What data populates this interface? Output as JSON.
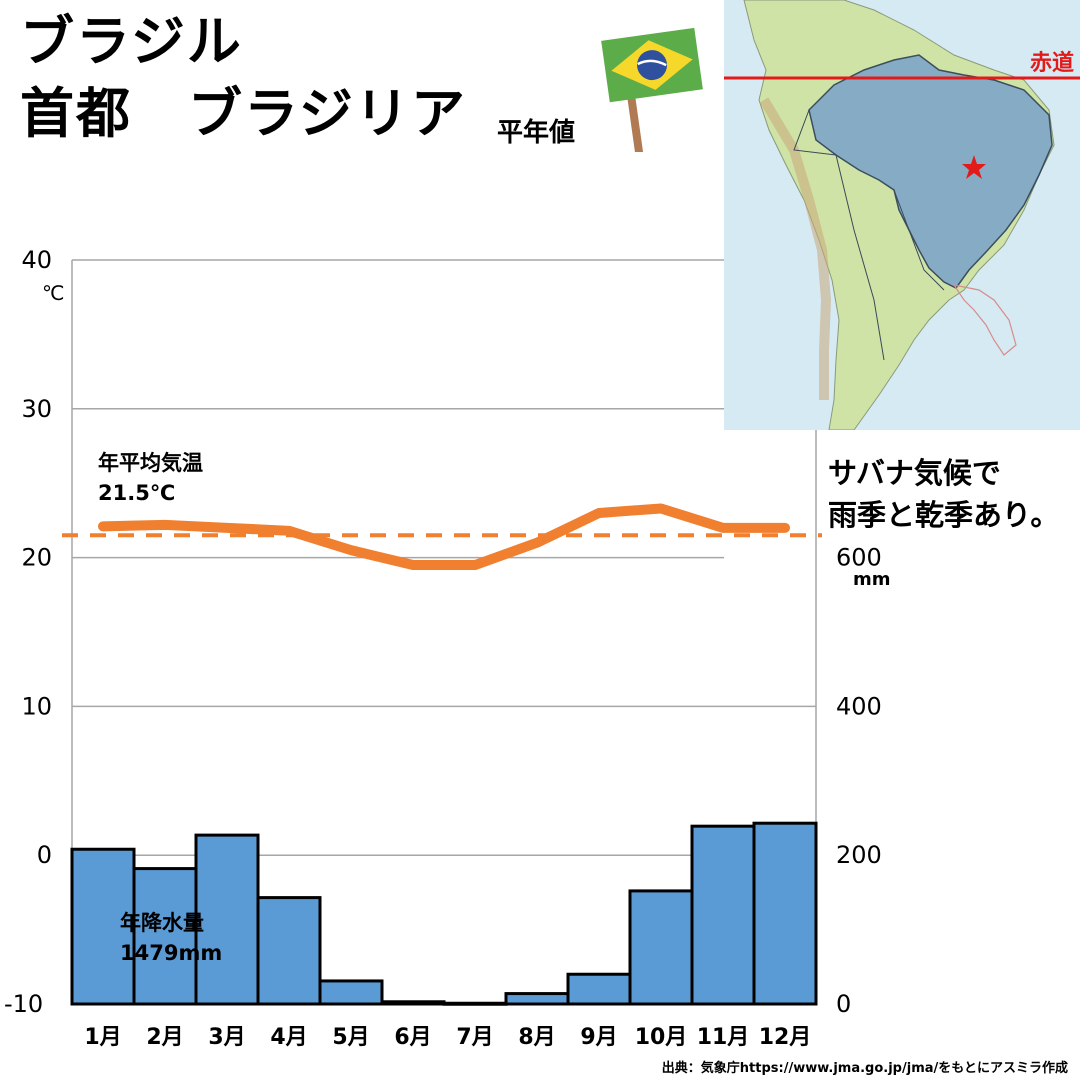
{
  "header": {
    "country": "ブラジル",
    "capital_line": "首都　ブラジリア",
    "subtitle": "平年値"
  },
  "map": {
    "equator_label": "赤道",
    "capital_marker": "star-icon"
  },
  "note": {
    "line1": "サバナ気候で",
    "line2": "雨季と乾季あり。"
  },
  "source": "出典：気象庁https://www.jma.go.jp/jma/をもとにアスミラ作成",
  "colors": {
    "temperature": "#f07f2f",
    "precipitation": "#5b9bd5",
    "grid": "#a6a6a6",
    "equator": "#e31a1a",
    "brazil_fill": "#7fa7c9"
  },
  "chart_data": {
    "type": "bar+line",
    "categories": [
      "1月",
      "2月",
      "3月",
      "4月",
      "5月",
      "6月",
      "7月",
      "8月",
      "9月",
      "10月",
      "11月",
      "12月"
    ],
    "temperature": {
      "type": "line",
      "unit": "℃",
      "values": [
        22.1,
        22.2,
        22.0,
        21.8,
        20.5,
        19.5,
        19.5,
        21.0,
        23.0,
        23.3,
        22.0,
        22.0
      ],
      "annual_label": "年平均気温",
      "annual_value": "21.5℃",
      "annual_mean": 21.5
    },
    "precipitation": {
      "type": "bar",
      "unit": "mm",
      "values": [
        208,
        182,
        227,
        143,
        31,
        3,
        1,
        14,
        40,
        152,
        239,
        243
      ],
      "annual_label": "年降水量",
      "annual_value": "1479mm"
    },
    "y_left": {
      "min": -10,
      "max": 40,
      "ticks": [
        -10,
        0,
        10,
        20,
        30,
        40
      ],
      "unit_label": "℃"
    },
    "y_right": {
      "min": 0,
      "max": 600,
      "ticks": [
        0,
        200,
        400,
        600
      ],
      "unit_label": "mm"
    },
    "grid": true
  }
}
